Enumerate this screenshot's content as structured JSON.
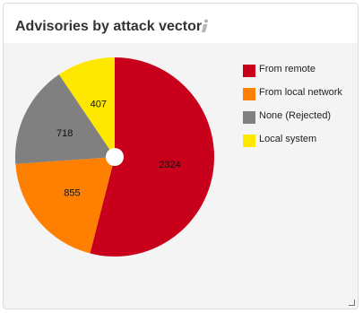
{
  "panel": {
    "title": "Advisories by attack vector",
    "info_icon": "info-icon"
  },
  "chart_data": {
    "type": "pie",
    "title": "Advisories by attack vector",
    "categories": [
      "From remote",
      "From local network",
      "None (Rejected)",
      "Local system"
    ],
    "values": [
      2324,
      855,
      718,
      407
    ],
    "colors": [
      "#c9001b",
      "#ff8000",
      "#808080",
      "#ffe800"
    ],
    "legend_position": "right",
    "donut_hole": true
  }
}
